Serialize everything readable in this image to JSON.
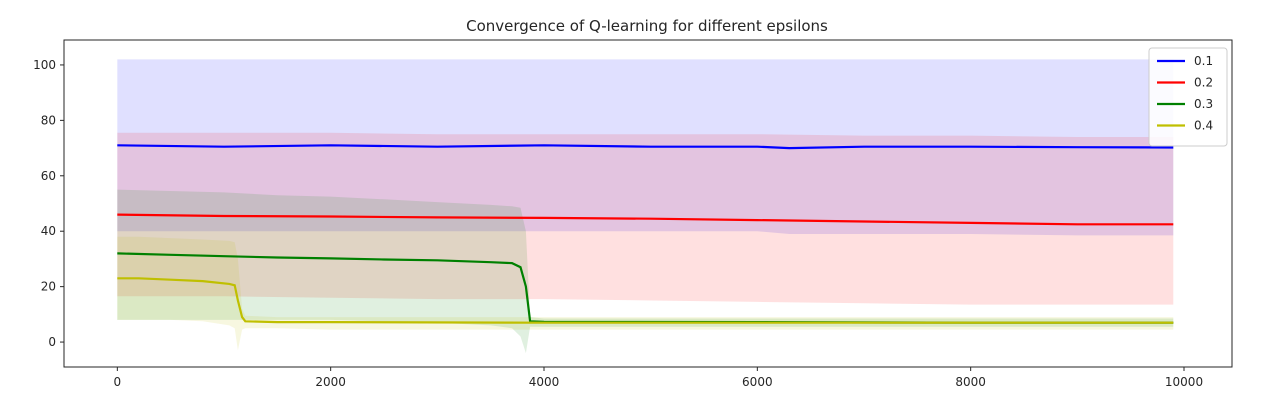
{
  "chart_data": {
    "type": "line",
    "title": "Convergence of Q-learning for different epsilons",
    "xlabel": "",
    "ylabel": "",
    "xlim": [
      -500,
      10450
    ],
    "ylim": [
      -9,
      109
    ],
    "x_ticks": [
      0,
      2000,
      4000,
      6000,
      8000,
      10000
    ],
    "y_ticks": [
      0,
      20,
      40,
      60,
      80,
      100
    ],
    "x_tick_labels": [
      "0",
      "2000",
      "4000",
      "6000",
      "8000",
      "10000"
    ],
    "y_tick_labels": [
      "0",
      "20",
      "40",
      "60",
      "80",
      "100"
    ],
    "grid": false,
    "legend_position": "top-right",
    "series": [
      {
        "name": "0.1",
        "color": "#0000ff",
        "band_color": "#0000ff",
        "x": [
          0,
          1000,
          2000,
          3000,
          4000,
          5000,
          6000,
          6300,
          7000,
          8000,
          9000,
          9900
        ],
        "y": [
          71,
          70.5,
          71,
          70.5,
          71,
          70.5,
          70.5,
          70,
          70.5,
          70.5,
          70.3,
          70.2
        ],
        "upper": [
          102,
          102,
          102,
          102,
          102,
          102,
          102,
          102,
          102,
          102,
          102,
          102
        ],
        "lower": [
          40,
          40,
          40,
          40,
          40,
          40,
          40,
          39,
          39,
          39,
          38.5,
          38.5
        ]
      },
      {
        "name": "0.2",
        "color": "#ff0000",
        "band_color": "#ff0000",
        "x": [
          0,
          1000,
          2000,
          3000,
          4000,
          5000,
          6000,
          7000,
          8000,
          9000,
          9900
        ],
        "y": [
          46,
          45.5,
          45.3,
          45,
          44.8,
          44.5,
          44,
          43.5,
          43,
          42.5,
          42.5
        ],
        "upper": [
          75.5,
          75.5,
          75.5,
          75,
          75,
          75,
          75,
          74.5,
          74.5,
          74,
          74
        ],
        "lower": [
          16.5,
          16.5,
          16,
          15.5,
          15.5,
          15,
          14.5,
          14,
          13.5,
          13.5,
          13.5
        ]
      },
      {
        "name": "0.3",
        "color": "#008000",
        "band_color": "#008000",
        "x": [
          0,
          500,
          1000,
          1500,
          2000,
          2500,
          3000,
          3500,
          3700,
          3780,
          3830,
          3870,
          4000,
          6000,
          8000,
          9900
        ],
        "y": [
          32,
          31.5,
          31,
          30.5,
          30.2,
          29.8,
          29.5,
          28.8,
          28.5,
          27,
          20,
          7.5,
          7.3,
          7.2,
          7,
          7
        ],
        "upper": [
          55,
          54.5,
          54,
          53,
          52.5,
          51.5,
          50.5,
          49.5,
          49,
          48.5,
          40,
          9,
          8.5,
          8.5,
          8.5,
          8.5
        ],
        "lower": [
          8,
          8,
          8,
          8,
          8,
          7.5,
          7,
          6,
          5,
          2,
          -4,
          5.5,
          5.5,
          5.5,
          5.5,
          5.5
        ]
      },
      {
        "name": "0.4",
        "color": "#bfbf00",
        "band_color": "#bfbf00",
        "x": [
          0,
          200,
          500,
          800,
          1050,
          1100,
          1130,
          1170,
          1200,
          1500,
          2000,
          4000,
          6000,
          8000,
          9900
        ],
        "y": [
          23,
          23,
          22.5,
          22,
          21,
          20.5,
          15,
          9,
          7.5,
          7.2,
          7.2,
          7,
          7,
          7,
          7
        ],
        "upper": [
          38,
          38,
          37.5,
          37,
          36.5,
          36,
          30,
          12,
          9.5,
          9,
          9,
          9,
          9,
          9,
          9
        ],
        "lower": [
          8,
          8,
          8,
          7.5,
          6,
          5,
          -3,
          4.5,
          5,
          5,
          4.5,
          4.5,
          4.5,
          4.5,
          4.5
        ]
      }
    ]
  }
}
